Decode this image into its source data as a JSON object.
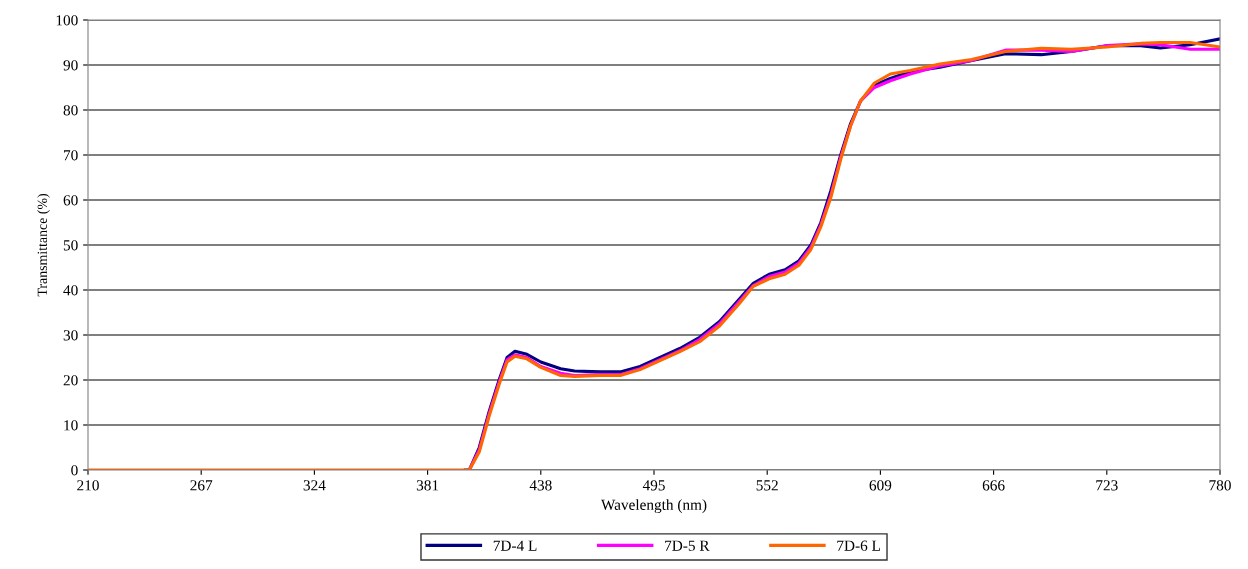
{
  "chart_data": {
    "type": "line",
    "xlabel": "Wavelength (nm)",
    "ylabel": "Transmittance (%)",
    "x": [
      210,
      300,
      400,
      402,
      407,
      412,
      417,
      421,
      425,
      431,
      438,
      448,
      455,
      468,
      478,
      488,
      498,
      508,
      518,
      528,
      538,
      545,
      553,
      561,
      568,
      574,
      579,
      584,
      589,
      594,
      599,
      606,
      614,
      624,
      639,
      655,
      672,
      690,
      705,
      723,
      740,
      750,
      765,
      780
    ],
    "series": [
      {
        "name": "7D-4 L",
        "color": "#000080",
        "values": [
          null,
          null,
          0,
          0,
          5,
          13,
          20,
          25,
          26.4,
          25.7,
          24,
          22.5,
          22,
          21.8,
          21.8,
          23,
          25,
          27,
          29.5,
          33,
          38,
          41.5,
          43.5,
          44.5,
          46.5,
          50,
          55,
          62,
          70,
          77,
          82,
          85.5,
          87,
          88.5,
          89.5,
          91,
          92.5,
          92.3,
          93,
          94.3,
          94.3,
          93.8,
          94.5,
          95.8
        ]
      },
      {
        "name": "7D-5 R",
        "color": "#ff00ff",
        "values": [
          null,
          null,
          null,
          0,
          4.5,
          12.5,
          19.5,
          24.5,
          25.6,
          25,
          23,
          21.5,
          21,
          21.2,
          21.2,
          22.5,
          24.5,
          26.5,
          29,
          32.5,
          37.5,
          41,
          43,
          44,
          46,
          49.5,
          54.5,
          61,
          69.5,
          76.5,
          82,
          85,
          86.5,
          88,
          89.8,
          91,
          93.3,
          93.3,
          93,
          94.3,
          94.7,
          94.5,
          93.5,
          93.5
        ]
      },
      {
        "name": "7D-6 L",
        "color": "#ff6600",
        "values": [
          0,
          0,
          0,
          0,
          4,
          12,
          19,
          24,
          25.3,
          24.7,
          22.8,
          21,
          20.8,
          21,
          21,
          22.3,
          24.3,
          26.3,
          28.5,
          32,
          37,
          40.8,
          42.5,
          43.5,
          45.5,
          49,
          54,
          60.5,
          69,
          76.5,
          82,
          86,
          88,
          88.8,
          90.2,
          91.2,
          93,
          93.7,
          93.5,
          94,
          94.8,
          95,
          95,
          94
        ]
      }
    ],
    "xlim": [
      210,
      780
    ],
    "xticks": [
      210,
      267,
      324,
      381,
      438,
      495,
      552,
      609,
      666,
      723,
      780
    ],
    "ylim": [
      0,
      100
    ],
    "yticks": [
      0,
      10,
      20,
      30,
      40,
      50,
      60,
      70,
      80,
      90,
      100
    ],
    "grid": "y",
    "legend": "bottom",
    "marker": "none",
    "line_style": "solid"
  }
}
